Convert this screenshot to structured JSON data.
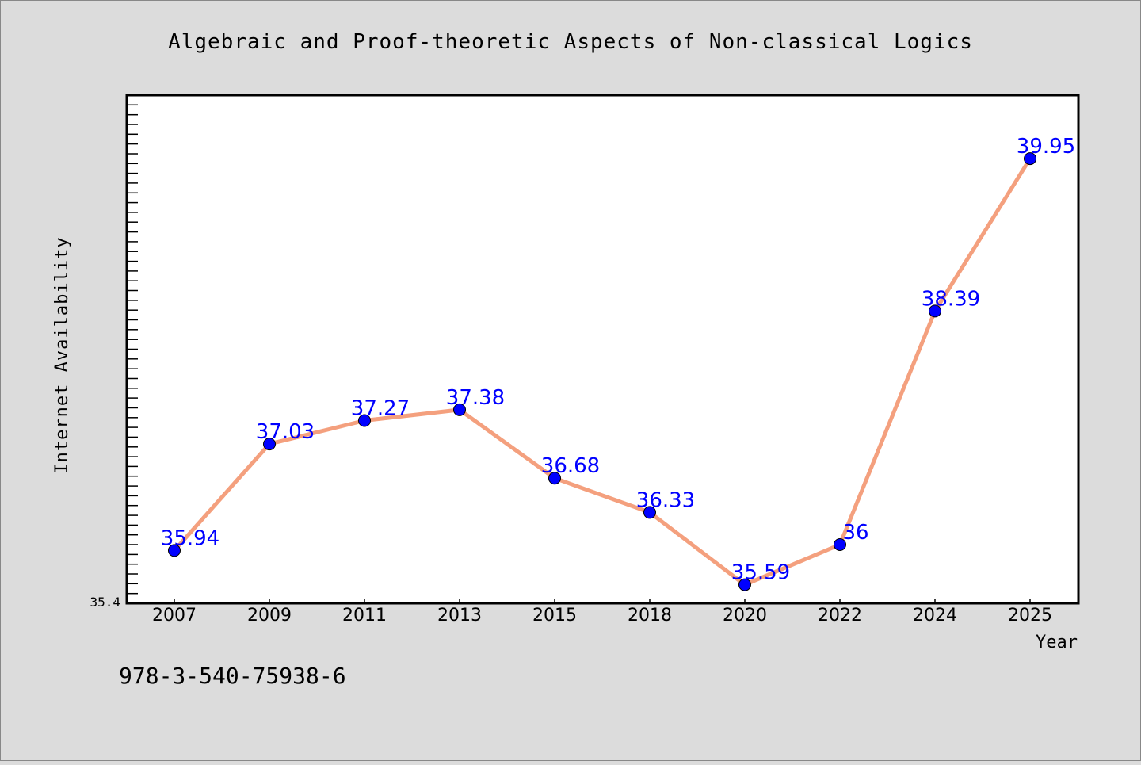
{
  "chart_data": {
    "type": "line",
    "title": "Algebraic and Proof-theoretic Aspects of Non-classical Logics",
    "xlabel": "Year",
    "ylabel": "Internet Availability",
    "categories": [
      "2007",
      "2009",
      "2011",
      "2013",
      "2015",
      "2018",
      "2020",
      "2022",
      "2024",
      "2025"
    ],
    "series": [
      {
        "values": [
          35.94,
          37.03,
          37.27,
          37.38,
          36.68,
          36.33,
          35.59,
          36,
          38.39,
          39.95
        ],
        "labels": [
          "35.94",
          "37.03",
          "37.27",
          "37.38",
          "36.68",
          "36.33",
          "35.59",
          "36",
          "38.39",
          "39.95"
        ]
      }
    ],
    "ylim": [
      35.4,
      40.6
    ],
    "yticks_labeled": [
      "35.4"
    ],
    "grid": false,
    "legend": "none",
    "colors": {
      "line": "#f4a07e",
      "marker": "#0000ff",
      "data_label": "#0000ff",
      "plot_background": "#ffffff",
      "page_background": "#dcdcdc"
    }
  },
  "footer": {
    "isbn": "978-3-540-75938-6"
  }
}
